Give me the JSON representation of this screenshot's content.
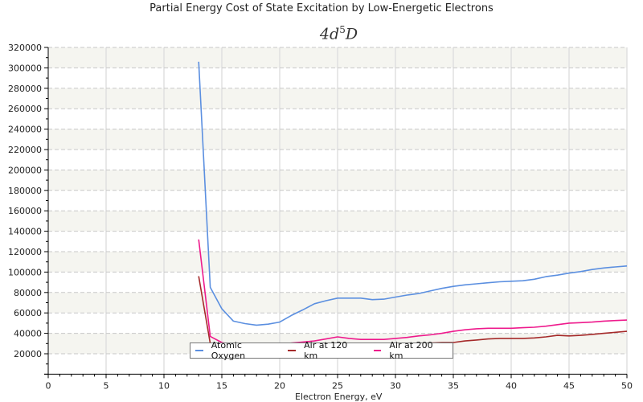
{
  "chart_data": {
    "type": "line",
    "title": "Partial Energy Cost of State Excitation by Low-Energetic Electrons",
    "subtitle": {
      "base": "4d",
      "sup": "5",
      "tail": "D"
    },
    "xlabel": "Electron Energy, eV",
    "ylabel": "",
    "xlim": [
      0,
      50
    ],
    "ylim": [
      0,
      320000
    ],
    "xticks": [
      0,
      5,
      10,
      15,
      20,
      25,
      30,
      35,
      40,
      45,
      50
    ],
    "yticks": [
      20000,
      40000,
      60000,
      80000,
      100000,
      120000,
      140000,
      160000,
      180000,
      200000,
      220000,
      240000,
      260000,
      280000,
      300000,
      320000
    ],
    "grid": true,
    "legend_position": "bottom-center",
    "series": [
      {
        "name": "Atomic Oxygen",
        "color": "#5b8fe0",
        "x": [
          13,
          14,
          15,
          16,
          17,
          18,
          19,
          20,
          21,
          22,
          23,
          24,
          25,
          26,
          27,
          28,
          29,
          30,
          31,
          32,
          33,
          34,
          35,
          36,
          37,
          38,
          39,
          40,
          41,
          42,
          43,
          44,
          45,
          46,
          47,
          48,
          49,
          50
        ],
        "y": [
          306000,
          85000,
          64000,
          52000,
          49500,
          48000,
          49000,
          51000,
          57500,
          63000,
          69000,
          72000,
          74500,
          74500,
          74500,
          73000,
          73500,
          75500,
          77500,
          79000,
          81500,
          84000,
          86000,
          87500,
          88500,
          89500,
          90500,
          91000,
          91500,
          93000,
          95500,
          97000,
          99000,
          100500,
          102500,
          104000,
          105000,
          106000
        ]
      },
      {
        "name": "Air at 120 km",
        "color": "#a52a2a",
        "x": [
          13,
          14,
          15,
          16,
          17,
          18,
          19,
          20,
          21,
          22,
          23,
          24,
          25,
          26,
          27,
          28,
          29,
          30,
          31,
          32,
          33,
          34,
          35,
          36,
          37,
          38,
          39,
          40,
          41,
          42,
          43,
          44,
          45,
          46,
          47,
          48,
          49,
          50
        ],
        "y": [
          96000,
          30000,
          23000,
          21000,
          20500,
          20000,
          20500,
          21500,
          23000,
          24500,
          26000,
          27000,
          28000,
          28000,
          28000,
          27500,
          27500,
          28500,
          29500,
          30000,
          30500,
          31000,
          31000,
          32500,
          33500,
          34500,
          35000,
          35000,
          35000,
          35500,
          36500,
          38000,
          37500,
          38000,
          39000,
          40000,
          41000,
          42000
        ]
      },
      {
        "name": "Air at 200 km",
        "color": "#ee1a8c",
        "x": [
          13,
          14,
          15,
          16,
          17,
          18,
          19,
          20,
          21,
          22,
          23,
          24,
          25,
          26,
          27,
          28,
          29,
          30,
          31,
          32,
          33,
          34,
          35,
          36,
          37,
          38,
          39,
          40,
          41,
          42,
          43,
          44,
          45,
          46,
          47,
          48,
          49,
          50
        ],
        "y": [
          132000,
          37000,
          31000,
          28500,
          28000,
          27500,
          28000,
          29000,
          30500,
          31500,
          32500,
          34500,
          36500,
          35000,
          34000,
          34000,
          34000,
          35000,
          36000,
          37500,
          38500,
          40000,
          42000,
          43500,
          44500,
          45000,
          45000,
          45000,
          45500,
          46000,
          47000,
          48500,
          50000,
          50500,
          51000,
          52000,
          52500,
          53000
        ]
      }
    ]
  }
}
